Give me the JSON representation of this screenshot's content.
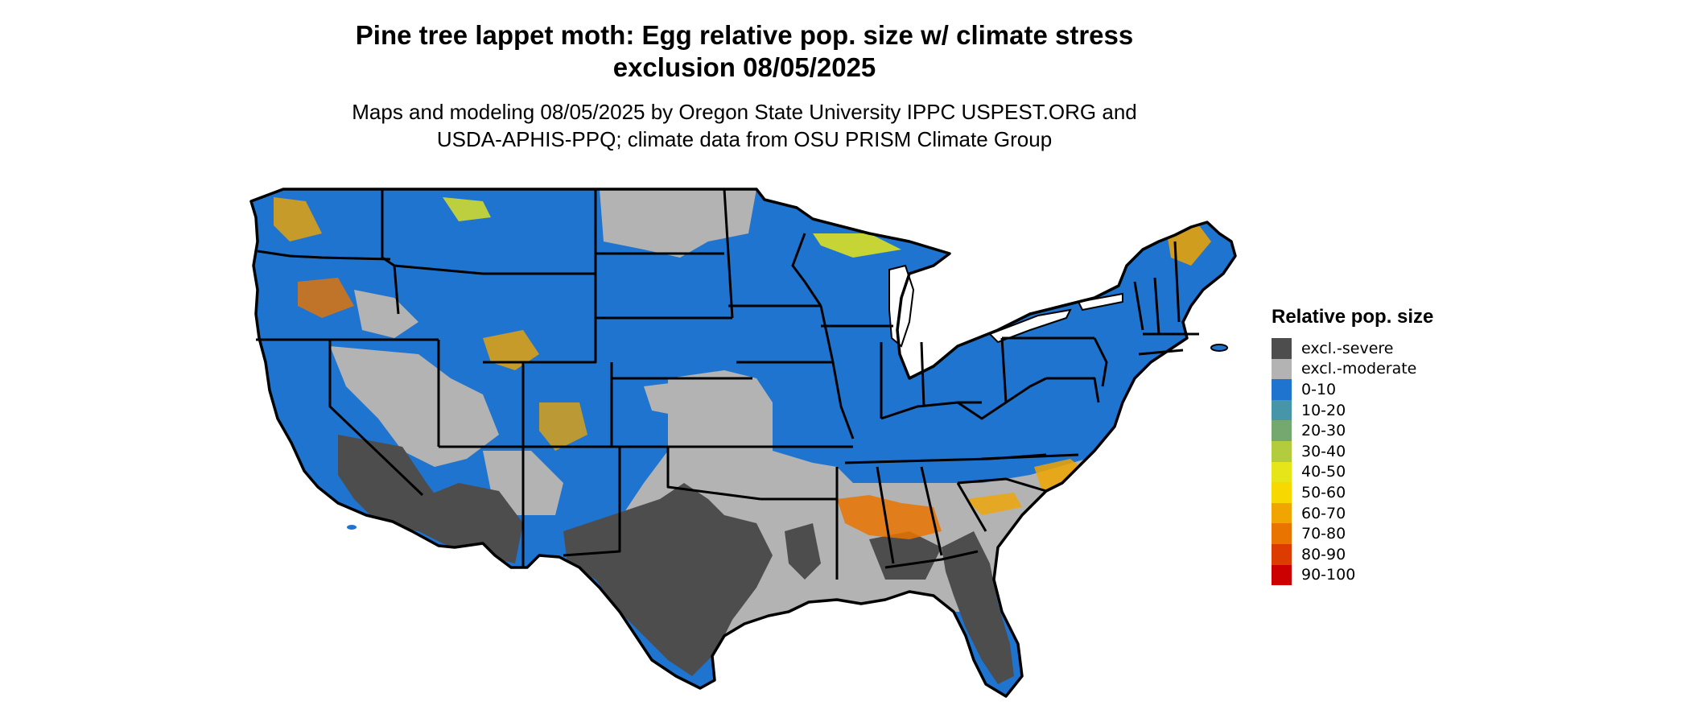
{
  "title_line1": "Pine tree lappet moth: Egg relative pop. size w/ climate stress",
  "title_line2": "exclusion 08/05/2025",
  "subtitle_line1": "Maps and modeling 08/05/2025 by Oregon State University IPPC USPEST.ORG and",
  "subtitle_line2": "USDA-APHIS-PPQ; climate data from OSU PRISM Climate Group",
  "legend": {
    "title": "Relative pop. size",
    "items": [
      {
        "label": "excl.-severe",
        "color": "#4d4d4d"
      },
      {
        "label": "excl.-moderate",
        "color": "#b3b3b3"
      },
      {
        "label": "0-10",
        "color": "#1f74cf"
      },
      {
        "label": "10-20",
        "color": "#4695a8"
      },
      {
        "label": "20-30",
        "color": "#74a86e"
      },
      {
        "label": "30-40",
        "color": "#b2cc3e"
      },
      {
        "label": "40-50",
        "color": "#e5e51a"
      },
      {
        "label": "50-60",
        "color": "#f7d800"
      },
      {
        "label": "60-70",
        "color": "#f0a500"
      },
      {
        "label": "70-80",
        "color": "#e97400"
      },
      {
        "label": "80-90",
        "color": "#dc3c00"
      },
      {
        "label": "90-100",
        "color": "#cc0000"
      }
    ]
  }
}
